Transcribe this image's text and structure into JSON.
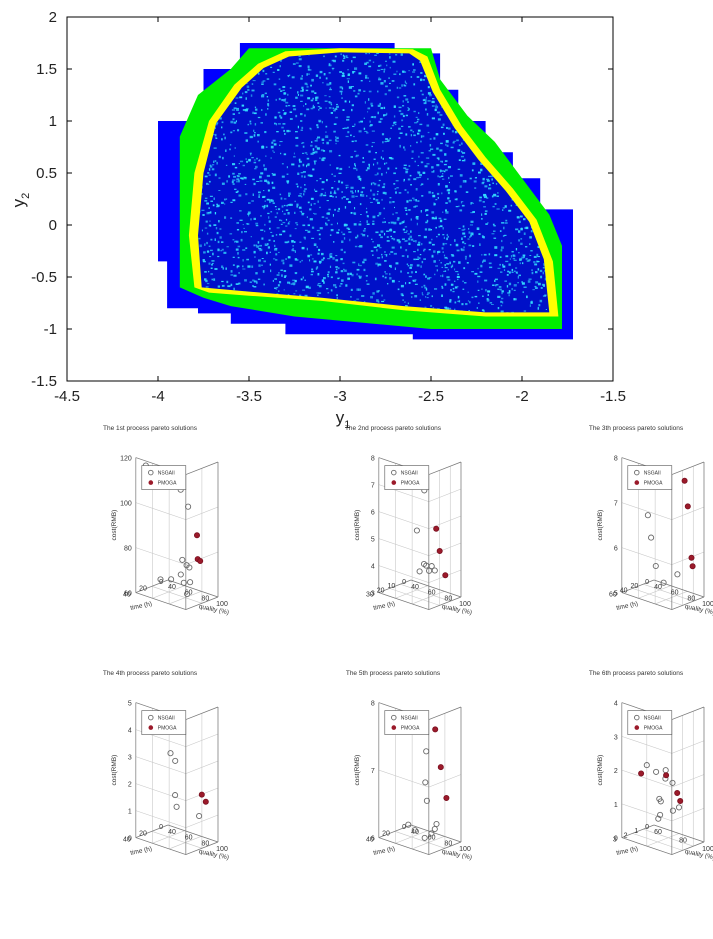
{
  "chart_data": [
    {
      "type": "heatmap",
      "title": "",
      "xlabel": "y",
      "xlabel_sub": "1",
      "ylabel": "y",
      "ylabel_sub": "2",
      "xlim": [
        -4.5,
        -1.5
      ],
      "ylim": [
        -1.5,
        2
      ],
      "xticks": [
        -4.5,
        -4,
        -3.5,
        -3,
        -2.5,
        -2,
        -1.5
      ],
      "xtick_labels": [
        "-4.5",
        "-4",
        "-3.5",
        "-3",
        "-2.5",
        "-2",
        "-1.5"
      ],
      "yticks": [
        -1.5,
        -1,
        -0.5,
        0,
        0.5,
        1,
        1.5,
        2
      ],
      "ytick_labels": [
        "-1.5",
        "-1",
        "-0.5",
        "0",
        "0.5",
        "1",
        "1.5",
        "2"
      ],
      "grid": false,
      "colors": {
        "outer": "#0000ff",
        "band1": "#00ee00",
        "band2": "#ffff00",
        "inner_bg": "#0010c8",
        "speckle": "#33ddff"
      },
      "layers": [
        {
          "name": "outer",
          "polygon": [
            [
              -4.0,
              -0.35
            ],
            [
              -4.0,
              1.0
            ],
            [
              -3.75,
              1.0
            ],
            [
              -3.75,
              1.5
            ],
            [
              -3.55,
              1.5
            ],
            [
              -3.55,
              1.75
            ],
            [
              -2.7,
              1.75
            ],
            [
              -2.7,
              1.65
            ],
            [
              -2.45,
              1.65
            ],
            [
              -2.45,
              1.3
            ],
            [
              -2.35,
              1.3
            ],
            [
              -2.35,
              1.0
            ],
            [
              -2.2,
              1.0
            ],
            [
              -2.2,
              0.7
            ],
            [
              -2.05,
              0.7
            ],
            [
              -2.05,
              0.45
            ],
            [
              -1.9,
              0.45
            ],
            [
              -1.9,
              0.15
            ],
            [
              -1.72,
              0.15
            ],
            [
              -1.72,
              -1.1
            ],
            [
              -2.6,
              -1.1
            ],
            [
              -2.6,
              -1.05
            ],
            [
              -3.3,
              -1.05
            ],
            [
              -3.3,
              -0.95
            ],
            [
              -3.6,
              -0.95
            ],
            [
              -3.6,
              -0.85
            ],
            [
              -3.78,
              -0.85
            ],
            [
              -3.78,
              -0.8
            ],
            [
              -3.95,
              -0.8
            ],
            [
              -3.95,
              -0.35
            ]
          ]
        },
        {
          "name": "band1",
          "polygon": [
            [
              -3.88,
              -0.6
            ],
            [
              -3.88,
              0.85
            ],
            [
              -3.78,
              1.25
            ],
            [
              -3.6,
              1.5
            ],
            [
              -3.5,
              1.7
            ],
            [
              -2.5,
              1.7
            ],
            [
              -2.45,
              1.4
            ],
            [
              -2.3,
              1.05
            ],
            [
              -2.15,
              0.8
            ],
            [
              -2.0,
              0.45
            ],
            [
              -1.85,
              0.1
            ],
            [
              -1.78,
              -0.2
            ],
            [
              -1.78,
              -1.0
            ],
            [
              -2.5,
              -1.0
            ],
            [
              -3.25,
              -0.88
            ],
            [
              -3.6,
              -0.78
            ],
            [
              -3.75,
              -0.7
            ]
          ]
        },
        {
          "name": "band2",
          "polygon": [
            [
              -3.8,
              -0.6
            ],
            [
              -3.83,
              -0.1
            ],
            [
              -3.8,
              0.5
            ],
            [
              -3.72,
              1.0
            ],
            [
              -3.58,
              1.35
            ],
            [
              -3.45,
              1.55
            ],
            [
              -3.3,
              1.67
            ],
            [
              -3.0,
              1.7
            ],
            [
              -2.6,
              1.69
            ],
            [
              -2.52,
              1.62
            ],
            [
              -2.45,
              1.3
            ],
            [
              -2.33,
              0.95
            ],
            [
              -2.2,
              0.65
            ],
            [
              -2.05,
              0.35
            ],
            [
              -1.92,
              0.05
            ],
            [
              -1.83,
              -0.35
            ],
            [
              -1.8,
              -0.88
            ],
            [
              -2.2,
              -0.88
            ],
            [
              -2.65,
              -0.82
            ],
            [
              -3.1,
              -0.73
            ],
            [
              -3.5,
              -0.68
            ],
            [
              -3.72,
              -0.65
            ]
          ]
        },
        {
          "name": "inner",
          "polygon": [
            [
              -3.76,
              -0.6
            ],
            [
              -3.78,
              -0.1
            ],
            [
              -3.75,
              0.5
            ],
            [
              -3.68,
              0.98
            ],
            [
              -3.54,
              1.32
            ],
            [
              -3.42,
              1.51
            ],
            [
              -3.28,
              1.62
            ],
            [
              -3.0,
              1.66
            ],
            [
              -2.62,
              1.65
            ],
            [
              -2.56,
              1.58
            ],
            [
              -2.49,
              1.28
            ],
            [
              -2.37,
              0.93
            ],
            [
              -2.24,
              0.63
            ],
            [
              -2.09,
              0.33
            ],
            [
              -1.96,
              0.03
            ],
            [
              -1.88,
              -0.33
            ],
            [
              -1.85,
              -0.84
            ],
            [
              -2.2,
              -0.84
            ],
            [
              -2.65,
              -0.78
            ],
            [
              -3.1,
              -0.7
            ],
            [
              -3.5,
              -0.64
            ],
            [
              -3.7,
              -0.61
            ]
          ]
        }
      ]
    },
    {
      "type": "scatter3d",
      "title": "The 1st process pareto solutions",
      "xlabel": "quality (%)",
      "ylabel": "time (h)",
      "zlabel": "cost(RMB)",
      "xlim": [
        40,
        100
      ],
      "ylim": [
        0,
        40
      ],
      "zlim": [
        60,
        120
      ],
      "xticks": [
        40,
        60,
        80,
        100
      ],
      "yticks": [
        0,
        20,
        40
      ],
      "zticks": [
        60,
        80,
        100,
        120
      ],
      "legend": [
        "NSGAII",
        "PMOGA"
      ],
      "legend_loc": "top-left",
      "series": [
        {
          "name": "NSGAII",
          "marker": "circle",
          "points": [
            [
              52,
              40,
              118
            ],
            [
              92,
              38,
              112
            ],
            [
              95,
              32,
              104
            ],
            [
              60,
              30,
              67
            ],
            [
              63,
              20,
              66
            ],
            [
              65,
              10,
              67
            ],
            [
              72,
              10,
              72
            ],
            [
              80,
              14,
              66
            ],
            [
              85,
              20,
              74
            ],
            [
              90,
              34,
              80
            ],
            [
              88,
              30,
              69
            ],
            [
              90,
              28,
              64
            ]
          ]
        },
        {
          "name": "PMOGA",
          "marker": "star",
          "points": [
            [
              96,
              22,
              90
            ],
            [
              95,
              20,
              79
            ],
            [
              96,
              18,
              78
            ]
          ]
        }
      ]
    },
    {
      "type": "scatter3d",
      "title": "The 2nd process pareto solutions",
      "xlabel": "quality (%)",
      "ylabel": "time (h)",
      "zlabel": "cost(RMB)",
      "xlim": [
        40,
        100
      ],
      "ylim": [
        0,
        30
      ],
      "zlim": [
        3,
        8
      ],
      "xticks": [
        40,
        60,
        80,
        100
      ],
      "yticks": [
        0,
        10,
        20,
        30
      ],
      "zticks": [
        3,
        4,
        5,
        6,
        7,
        8
      ],
      "legend": [
        "NSGAII",
        "PMOGA"
      ],
      "legend_loc": "top-left",
      "series": [
        {
          "name": "NSGAII",
          "marker": "circle",
          "points": [
            [
              70,
              30,
              7.6
            ],
            [
              92,
              28,
              7.3
            ],
            [
              60,
              10,
              5.2
            ],
            [
              58,
              6,
              3.6
            ],
            [
              62,
              5,
              3.9
            ],
            [
              66,
              6,
              3.9
            ],
            [
              72,
              8,
              3.8
            ],
            [
              84,
              12,
              4.0
            ],
            [
              88,
              18,
              4.3
            ]
          ]
        },
        {
          "name": "PMOGA",
          "marker": "star",
          "points": [
            [
              96,
              20,
              5.8
            ],
            [
              95,
              16,
              4.9
            ],
            [
              94,
              10,
              3.9
            ]
          ]
        }
      ]
    },
    {
      "type": "scatter3d",
      "title": "The 3th process pareto solutions",
      "xlabel": "quality (%)",
      "ylabel": "time (h)",
      "zlabel": "cost(RMB)",
      "xlim": [
        40,
        100
      ],
      "ylim": [
        0,
        60
      ],
      "zlim": [
        5,
        8
      ],
      "xticks": [
        40,
        60,
        80,
        100
      ],
      "yticks": [
        0,
        20,
        40,
        60
      ],
      "zticks": [
        5,
        6,
        7,
        8
      ],
      "legend": [
        "NSGAII",
        "PMOGA"
      ],
      "legend_loc": "top-left",
      "series": [
        {
          "name": "NSGAII",
          "marker": "circle",
          "points": [
            [
              70,
              58,
              6.9
            ],
            [
              72,
              55,
              6.4
            ],
            [
              55,
              20,
              5.5
            ],
            [
              58,
              10,
              5.1
            ],
            [
              90,
              34,
              5.6
            ]
          ]
        },
        {
          "name": "PMOGA",
          "marker": "star",
          "points": [
            [
              96,
              30,
              7.7
            ],
            [
              96,
              24,
              7.1
            ],
            [
              94,
              14,
              5.9
            ],
            [
              94,
              12,
              5.7
            ]
          ]
        }
      ]
    },
    {
      "type": "scatter3d",
      "title": "The 4th process pareto solutions",
      "xlabel": "quality (%)",
      "ylabel": "time (h)",
      "zlabel": "cost(RMB)",
      "xlim": [
        40,
        100
      ],
      "ylim": [
        0,
        40
      ],
      "zlim": [
        0,
        5
      ],
      "xticks": [
        40,
        60,
        80,
        100
      ],
      "yticks": [
        0,
        20,
        40
      ],
      "zticks": [
        0,
        1,
        2,
        3,
        4,
        5
      ],
      "legend": [
        "NSGAII",
        "PMOGA"
      ],
      "legend_loc": "top-left",
      "series": [
        {
          "name": "NSGAII",
          "marker": "circle",
          "points": [
            [
              80,
              40,
              5.0
            ],
            [
              85,
              38,
              4.9
            ],
            [
              90,
              36,
              4.7
            ],
            [
              70,
              28,
              3.3
            ],
            [
              68,
              20,
              2.9
            ],
            [
              62,
              14,
              1.5
            ],
            [
              60,
              10,
              1.0
            ],
            [
              85,
              8,
              0.9
            ]
          ]
        },
        {
          "name": "PMOGA",
          "marker": "star",
          "points": [
            [
              96,
              16,
              1.9
            ],
            [
              97,
              12,
              1.6
            ]
          ]
        }
      ]
    },
    {
      "type": "scatter3d",
      "title": "The 5th process pareto solutions",
      "xlabel": "quality (%)",
      "ylabel": "time (h)",
      "zlabel": "cost(RMB)",
      "xlim": [
        40,
        100
      ],
      "ylim": [
        0,
        40
      ],
      "zlim": [
        6,
        8
      ],
      "xticks": [
        40,
        60,
        80,
        100
      ],
      "yticks": [
        0,
        20,
        40
      ],
      "zticks": [
        6,
        7,
        8
      ],
      "legend": [
        "NSGAII",
        "PMOGA"
      ],
      "legend_loc": "top-left",
      "series": [
        {
          "name": "NSGAII",
          "marker": "circle",
          "points": [
            [
              95,
              38,
              7.5
            ],
            [
              90,
              34,
              7.0
            ],
            [
              88,
              30,
              6.7
            ],
            [
              60,
              24,
              6.2
            ],
            [
              62,
              18,
              6.1
            ],
            [
              70,
              14,
              6.0
            ],
            [
              78,
              14,
              6.1
            ],
            [
              84,
              16,
              6.2
            ],
            [
              88,
              18,
              6.3
            ]
          ]
        },
        {
          "name": "PMOGA",
          "marker": "star",
          "points": [
            [
              98,
              30,
              7.8
            ],
            [
              97,
              22,
              7.2
            ],
            [
              96,
              14,
              6.7
            ]
          ]
        }
      ]
    },
    {
      "type": "scatter3d",
      "title": "The 6th process pareto solutions",
      "xlabel": "quality (%)",
      "ylabel": "time (h)",
      "zlabel": "cost(RMB)",
      "xlim": [
        60,
        100
      ],
      "ylim": [
        0,
        3
      ],
      "zlim": [
        0,
        4
      ],
      "xticks": [
        60,
        80,
        100
      ],
      "yticks": [
        0,
        1,
        2,
        3
      ],
      "zticks": [
        0,
        1,
        2,
        3,
        4
      ],
      "legend": [
        "NSGAII",
        "PMOGA"
      ],
      "legend_loc": "top-left",
      "series": [
        {
          "name": "NSGAII",
          "marker": "circle",
          "points": [
            [
              80,
              3,
              2.4
            ],
            [
              84,
              2.6,
              2.2
            ],
            [
              88,
              2.2,
              2.0
            ],
            [
              90,
              2.4,
              2.3
            ],
            [
              92,
              2.0,
              1.9
            ],
            [
              78,
              1.6,
              1.2
            ],
            [
              74,
              1.0,
              1.0
            ],
            [
              82,
              0.8,
              0.8
            ],
            [
              70,
              0.6,
              0.5
            ],
            [
              66,
              0.3,
              0.3
            ],
            [
              92,
              1.4,
              1.1
            ]
          ]
        },
        {
          "name": "PMOGA",
          "marker": "star",
          "points": [
            [
              72,
              2.6,
              2.0
            ],
            [
              92,
              2.6,
              2.2
            ],
            [
              94,
              1.8,
              1.6
            ],
            [
              93,
              1.4,
              1.3
            ]
          ]
        }
      ]
    }
  ]
}
